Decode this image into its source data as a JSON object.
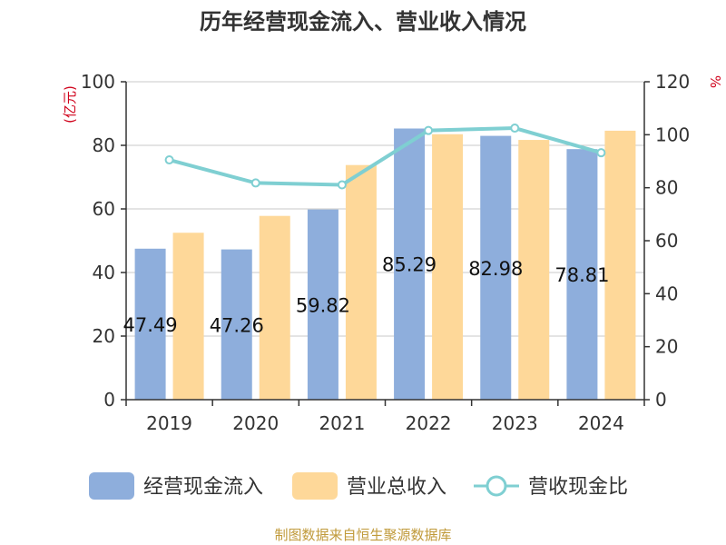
{
  "colors": {
    "cash_inflow": "#8eaedc",
    "revenue": "#fed899",
    "ratio_line": "#7fcfd2",
    "axis": "#333333",
    "grid": "#c8c8c8",
    "unit": "#d0021b",
    "source": "#c09a3a"
  },
  "chart_data": {
    "type": "bar",
    "title": "历年经营现金流入、营业收入情况",
    "categories": [
      "2019",
      "2020",
      "2021",
      "2022",
      "2023",
      "2024"
    ],
    "left_unit": "(亿元)",
    "right_unit": "%",
    "left_axis": {
      "min": 0,
      "max": 100,
      "ticks": [
        0,
        20,
        40,
        60,
        80,
        100
      ]
    },
    "right_axis": {
      "min": 0,
      "max": 120,
      "ticks": [
        0,
        20,
        40,
        60,
        80,
        100,
        120
      ]
    },
    "series": [
      {
        "name": "经营现金流入",
        "kind": "bar",
        "axis": "left",
        "values": [
          47.49,
          47.26,
          59.82,
          85.29,
          82.98,
          78.81
        ],
        "labels": [
          "47.49",
          "47.26",
          "59.82",
          "85.29",
          "82.98",
          "78.81"
        ]
      },
      {
        "name": "营业总收入",
        "kind": "bar",
        "axis": "left",
        "values": [
          52.5,
          57.8,
          73.8,
          83.5,
          81.7,
          84.6
        ]
      },
      {
        "name": "营收现金比",
        "kind": "line",
        "axis": "right",
        "values": [
          90.5,
          81.8,
          81.1,
          101.6,
          102.5,
          93.2
        ]
      }
    ]
  },
  "source_text": "制图数据来自恒生聚源数据库"
}
